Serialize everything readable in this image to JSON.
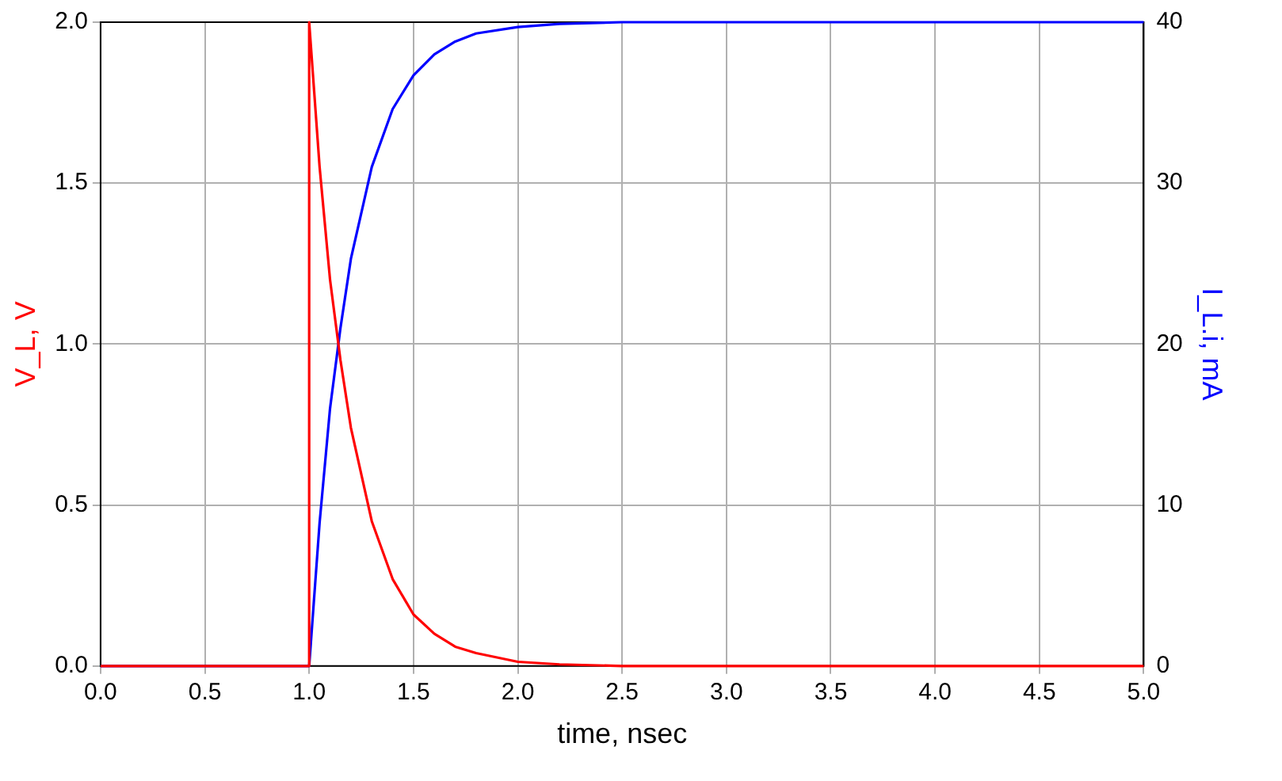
{
  "chart_data": {
    "type": "line",
    "xlabel": "time, nsec",
    "ylabel": "V_L, V",
    "y2label": "I_L.i, mA",
    "xlim": [
      0,
      5
    ],
    "xticks": [
      {
        "value": 0,
        "label": "0.0"
      },
      {
        "value": 0.5,
        "label": "0.5"
      },
      {
        "value": 1,
        "label": "1.0"
      },
      {
        "value": 1.5,
        "label": "1.5"
      },
      {
        "value": 2,
        "label": "2.0"
      },
      {
        "value": 2.5,
        "label": "2.5"
      },
      {
        "value": 3,
        "label": "3.0"
      },
      {
        "value": 3.5,
        "label": "3.5"
      },
      {
        "value": 4,
        "label": "4.0"
      },
      {
        "value": 4.5,
        "label": "4.5"
      },
      {
        "value": 5,
        "label": "5.0"
      }
    ],
    "ylim": [
      0,
      2
    ],
    "yticks": [
      {
        "value": 0,
        "label": "0.0"
      },
      {
        "value": 0.5,
        "label": "0.5"
      },
      {
        "value": 1,
        "label": "1.0"
      },
      {
        "value": 1.5,
        "label": "1.5"
      },
      {
        "value": 2,
        "label": "2.0"
      }
    ],
    "y2lim": [
      0,
      40
    ],
    "y2ticks": [
      0,
      10,
      20,
      30,
      40
    ],
    "grid": true,
    "legend": false,
    "series": [
      {
        "color": "#ff0000",
        "x": [
          0,
          1,
          1,
          1.05,
          1.1,
          1.15,
          1.2,
          1.3,
          1.4,
          1.5,
          1.6,
          1.7,
          1.8,
          2,
          2.2,
          2.5,
          5
        ],
        "values": [
          0,
          0,
          2,
          1.55,
          1.2,
          0.95,
          0.74,
          0.45,
          0.27,
          0.16,
          0.1,
          0.06,
          0.04,
          0.013,
          0.005,
          0,
          0
        ]
      },
      {
        "color": "#0000ff",
        "axis": "y2",
        "x": [
          0,
          1,
          1.05,
          1.1,
          1.15,
          1.2,
          1.3,
          1.4,
          1.5,
          1.6,
          1.7,
          1.8,
          2,
          2.2,
          2.5,
          5
        ],
        "values": [
          0,
          0,
          8.9,
          16,
          21,
          25.3,
          31,
          34.6,
          36.7,
          38,
          38.8,
          39.3,
          39.7,
          39.9,
          40,
          40
        ]
      }
    ]
  }
}
